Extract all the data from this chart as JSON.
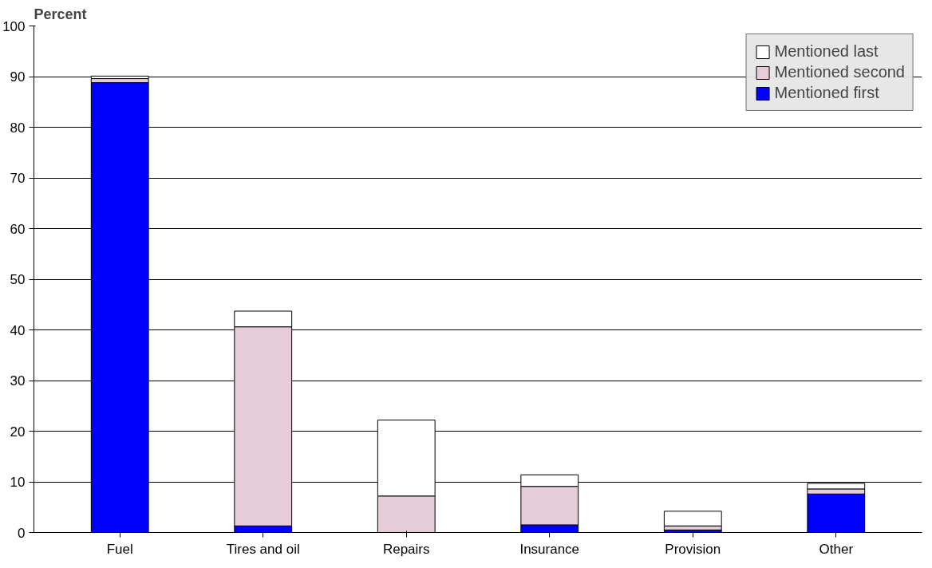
{
  "chart_data": {
    "type": "bar",
    "stacked": true,
    "ylabel": "Percent",
    "categories": [
      "Fuel",
      "Tires and oil",
      "Repairs",
      "Insurance",
      "Provision",
      "Other"
    ],
    "series": [
      {
        "name": "Mentioned first",
        "color": "#0000ff",
        "values": [
          88.8,
          1.3,
          0,
          1.5,
          0.5,
          7.6
        ]
      },
      {
        "name": "Mentioned second",
        "color": "#e6ccd9",
        "values": [
          0.8,
          39.3,
          7.2,
          7.6,
          0.8,
          1.0
        ]
      },
      {
        "name": "Mentioned last",
        "color": "#ffffff",
        "values": [
          0.5,
          3.1,
          15.0,
          2.3,
          2.9,
          1.1
        ]
      }
    ],
    "ylim": [
      0,
      100
    ],
    "yticks": [
      0,
      10,
      20,
      30,
      40,
      50,
      60,
      70,
      80,
      90,
      100
    ],
    "grid": "y",
    "legend": "top right"
  }
}
